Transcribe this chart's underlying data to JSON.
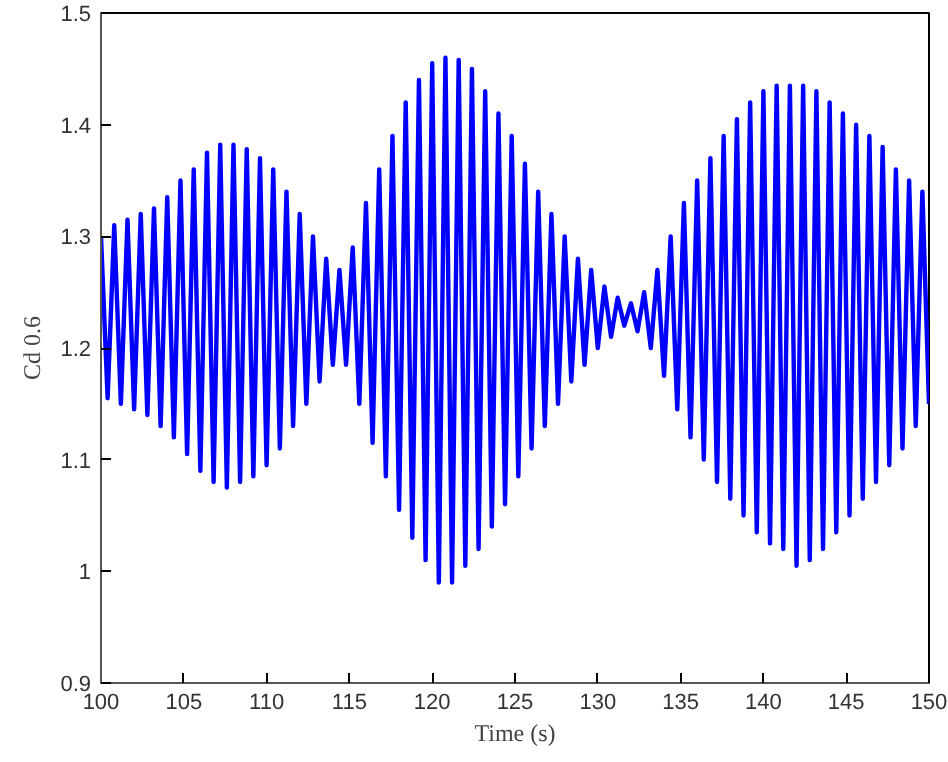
{
  "chart_data": {
    "type": "line",
    "xlabel": "Time (s)",
    "ylabel": "Cd 0.6",
    "xlim": [
      100,
      150
    ],
    "xticks": [
      100,
      105,
      110,
      115,
      120,
      125,
      130,
      135,
      140,
      145,
      150
    ],
    "ylim": [
      0.9,
      1.5
    ],
    "yticks": [
      0.9,
      1,
      1.1,
      1.2,
      1.3,
      1.4,
      1.5
    ],
    "grid": false,
    "series": [
      {
        "color": "#0000ff",
        "x": [
          100.0,
          100.4,
          100.8,
          101.2,
          101.6,
          102.0,
          102.4,
          102.8,
          103.2,
          103.6,
          104.0,
          104.4,
          104.8,
          105.2,
          105.6,
          106.0,
          106.4,
          106.8,
          107.2,
          107.6,
          108.0,
          108.4,
          108.8,
          109.2,
          109.6,
          110.0,
          110.4,
          110.8,
          111.2,
          111.6,
          112.0,
          112.4,
          112.8,
          113.2,
          113.6,
          114.0,
          114.4,
          114.8,
          115.2,
          115.6,
          116.0,
          116.4,
          116.8,
          117.2,
          117.6,
          118.0,
          118.4,
          118.8,
          119.2,
          119.6,
          120.0,
          120.4,
          120.8,
          121.2,
          121.6,
          122.0,
          122.4,
          122.8,
          123.2,
          123.6,
          124.0,
          124.4,
          124.8,
          125.2,
          125.6,
          126.0,
          126.4,
          126.8,
          127.2,
          127.6,
          128.0,
          128.4,
          128.8,
          129.2,
          129.6,
          130.0,
          130.4,
          130.8,
          131.2,
          131.6,
          132.0,
          132.4,
          132.8,
          133.2,
          133.6,
          134.0,
          134.4,
          134.8,
          135.2,
          135.6,
          136.0,
          136.4,
          136.8,
          137.2,
          137.6,
          138.0,
          138.4,
          138.8,
          139.2,
          139.6,
          140.0,
          140.4,
          140.8,
          141.2,
          141.6,
          142.0,
          142.4,
          142.8,
          143.2,
          143.6,
          144.0,
          144.4,
          144.8,
          145.2,
          145.6,
          146.0,
          146.4,
          146.8,
          147.2,
          147.6,
          148.0,
          148.4,
          148.8,
          149.2,
          149.6,
          150.0
        ],
        "values": [
          1.3,
          1.155,
          1.31,
          1.15,
          1.315,
          1.145,
          1.32,
          1.14,
          1.325,
          1.13,
          1.335,
          1.12,
          1.35,
          1.105,
          1.36,
          1.09,
          1.375,
          1.08,
          1.382,
          1.075,
          1.382,
          1.08,
          1.378,
          1.085,
          1.37,
          1.095,
          1.36,
          1.11,
          1.34,
          1.13,
          1.32,
          1.15,
          1.3,
          1.17,
          1.28,
          1.185,
          1.27,
          1.185,
          1.29,
          1.15,
          1.33,
          1.115,
          1.36,
          1.085,
          1.39,
          1.055,
          1.42,
          1.03,
          1.44,
          1.01,
          1.455,
          0.99,
          1.46,
          0.99,
          1.458,
          1.005,
          1.45,
          1.02,
          1.43,
          1.04,
          1.41,
          1.06,
          1.39,
          1.085,
          1.365,
          1.11,
          1.34,
          1.13,
          1.32,
          1.15,
          1.3,
          1.17,
          1.28,
          1.185,
          1.27,
          1.2,
          1.255,
          1.21,
          1.245,
          1.22,
          1.24,
          1.215,
          1.25,
          1.2,
          1.27,
          1.175,
          1.3,
          1.145,
          1.33,
          1.12,
          1.35,
          1.1,
          1.37,
          1.08,
          1.39,
          1.065,
          1.405,
          1.05,
          1.42,
          1.035,
          1.43,
          1.025,
          1.435,
          1.02,
          1.435,
          1.005,
          1.435,
          1.01,
          1.43,
          1.02,
          1.42,
          1.035,
          1.41,
          1.05,
          1.4,
          1.065,
          1.39,
          1.08,
          1.38,
          1.095,
          1.36,
          1.11,
          1.35,
          1.13,
          1.34,
          1.15
        ]
      }
    ]
  }
}
